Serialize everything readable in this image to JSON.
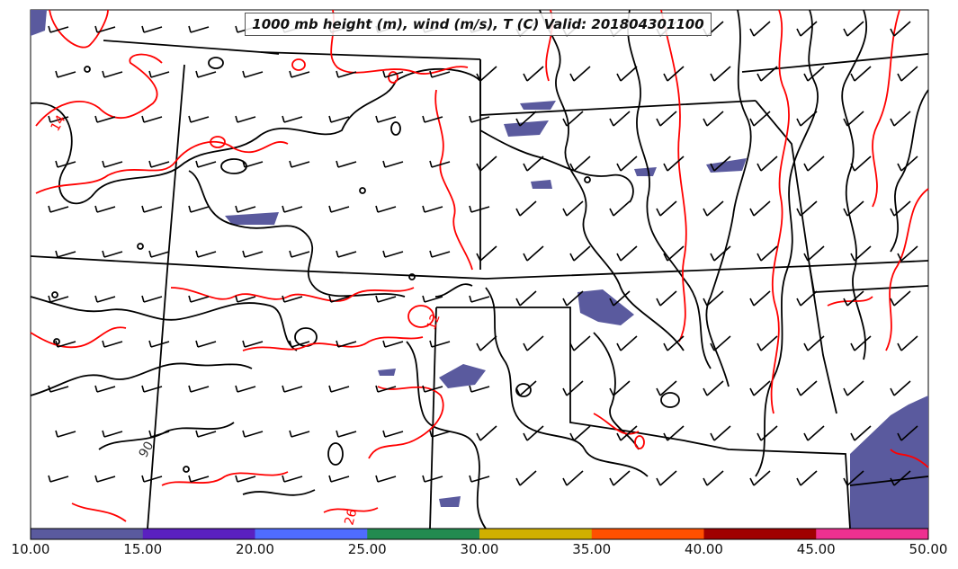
{
  "title": "1000 mb height (m), wind (m/s), T (C) Valid: 201804301100",
  "contour_labels": {
    "temp_a": "14",
    "temp_b": "12",
    "temp_c": "26",
    "height_a": "90"
  },
  "colorbar": {
    "ticks": [
      "10.00",
      "15.00",
      "20.00",
      "25.00",
      "30.00",
      "35.00",
      "40.00",
      "45.00",
      "50.00"
    ],
    "colors": [
      "#5a5a9e",
      "#5a20c0",
      "#4f6cff",
      "#228b50",
      "#d0b000",
      "#ff5000",
      "#a00000",
      "#ee3090"
    ]
  },
  "colors": {
    "height_contour": "#000000",
    "temperature_contour": "#ff0000",
    "wind_shading": "#5a5a9e",
    "borders": "#000000"
  }
}
